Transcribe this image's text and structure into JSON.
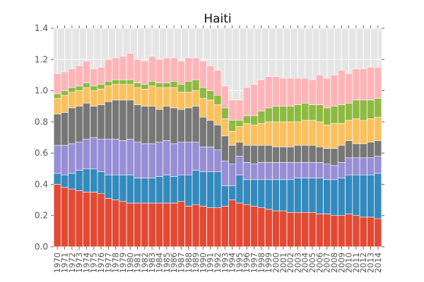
{
  "chart_data": {
    "type": "bar",
    "stacked": true,
    "title": "Haiti",
    "xlabel": "",
    "ylabel": "",
    "ylim": [
      0,
      1.4
    ],
    "yticks": [
      "0.0",
      "0.2",
      "0.4",
      "0.6",
      "0.8",
      "1.0",
      "1.2",
      "1.4"
    ],
    "grid": true,
    "legend": "none",
    "categories": [
      "1970",
      "1971",
      "1972",
      "1973",
      "1974",
      "1975",
      "1976",
      "1977",
      "1978",
      "1979",
      "1980",
      "1981",
      "1982",
      "1983",
      "1984",
      "1985",
      "1986",
      "1987",
      "1988",
      "1989",
      "1990",
      "1991",
      "1992",
      "1993",
      "1994",
      "1995",
      "1996",
      "1997",
      "1998",
      "1999",
      "2000",
      "2001",
      "2002",
      "2003",
      "2004",
      "2005",
      "2006",
      "2007",
      "2008",
      "2009",
      "2010",
      "2011",
      "2012",
      "2013",
      "2014"
    ],
    "colors": [
      "#e24a33",
      "#348abd",
      "#988ed5",
      "#777777",
      "#fbc15e",
      "#8eba42",
      "#ffb5b8"
    ],
    "series": [
      {
        "values": [
          0.4,
          0.38,
          0.37,
          0.36,
          0.35,
          0.35,
          0.34,
          0.31,
          0.3,
          0.29,
          0.28,
          0.28,
          0.28,
          0.28,
          0.28,
          0.28,
          0.28,
          0.29,
          0.26,
          0.27,
          0.26,
          0.25,
          0.25,
          0.26,
          0.3,
          0.28,
          0.27,
          0.26,
          0.25,
          0.24,
          0.23,
          0.23,
          0.22,
          0.22,
          0.22,
          0.22,
          0.21,
          0.21,
          0.2,
          0.2,
          0.21,
          0.2,
          0.19,
          0.19,
          0.18
        ]
      },
      {
        "values": [
          0.07,
          0.08,
          0.1,
          0.13,
          0.15,
          0.15,
          0.14,
          0.15,
          0.16,
          0.17,
          0.18,
          0.16,
          0.16,
          0.16,
          0.17,
          0.18,
          0.17,
          0.17,
          0.2,
          0.22,
          0.22,
          0.23,
          0.23,
          0.13,
          0.09,
          0.18,
          0.16,
          0.17,
          0.18,
          0.19,
          0.2,
          0.2,
          0.21,
          0.22,
          0.22,
          0.22,
          0.23,
          0.22,
          0.23,
          0.24,
          0.25,
          0.26,
          0.27,
          0.27,
          0.29
        ]
      },
      {
        "values": [
          0.18,
          0.19,
          0.19,
          0.18,
          0.19,
          0.2,
          0.21,
          0.23,
          0.23,
          0.22,
          0.23,
          0.23,
          0.22,
          0.22,
          0.22,
          0.22,
          0.21,
          0.21,
          0.21,
          0.18,
          0.16,
          0.16,
          0.14,
          0.16,
          0.14,
          0.12,
          0.11,
          0.1,
          0.11,
          0.11,
          0.11,
          0.11,
          0.11,
          0.1,
          0.1,
          0.1,
          0.1,
          0.1,
          0.09,
          0.1,
          0.11,
          0.11,
          0.11,
          0.11,
          0.11
        ]
      },
      {
        "values": [
          0.2,
          0.21,
          0.23,
          0.23,
          0.23,
          0.2,
          0.22,
          0.24,
          0.25,
          0.26,
          0.25,
          0.24,
          0.24,
          0.24,
          0.21,
          0.22,
          0.23,
          0.21,
          0.22,
          0.23,
          0.19,
          0.17,
          0.16,
          0.16,
          0.12,
          0.09,
          0.11,
          0.12,
          0.11,
          0.11,
          0.1,
          0.1,
          0.1,
          0.11,
          0.11,
          0.11,
          0.1,
          0.1,
          0.11,
          0.11,
          0.11,
          0.09,
          0.09,
          0.1,
          0.1
        ]
      },
      {
        "values": [
          0.1,
          0.11,
          0.1,
          0.1,
          0.1,
          0.1,
          0.1,
          0.1,
          0.1,
          0.1,
          0.1,
          0.11,
          0.11,
          0.13,
          0.14,
          0.12,
          0.13,
          0.11,
          0.1,
          0.1,
          0.12,
          0.13,
          0.13,
          0.11,
          0.09,
          0.1,
          0.14,
          0.13,
          0.14,
          0.15,
          0.16,
          0.16,
          0.16,
          0.15,
          0.16,
          0.16,
          0.16,
          0.15,
          0.16,
          0.14,
          0.13,
          0.16,
          0.15,
          0.15,
          0.15
        ]
      },
      {
        "values": [
          0.03,
          0.03,
          0.03,
          0.03,
          0.03,
          0.03,
          0.03,
          0.03,
          0.03,
          0.03,
          0.03,
          0.03,
          0.03,
          0.03,
          0.03,
          0.03,
          0.04,
          0.05,
          0.07,
          0.07,
          0.07,
          0.06,
          0.06,
          0.07,
          0.07,
          0.04,
          0.05,
          0.06,
          0.08,
          0.09,
          0.1,
          0.1,
          0.1,
          0.11,
          0.11,
          0.1,
          0.11,
          0.11,
          0.11,
          0.12,
          0.11,
          0.12,
          0.13,
          0.12,
          0.12
        ]
      },
      {
        "values": [
          0.13,
          0.12,
          0.12,
          0.13,
          0.14,
          0.11,
          0.11,
          0.14,
          0.14,
          0.15,
          0.17,
          0.15,
          0.15,
          0.16,
          0.15,
          0.16,
          0.15,
          0.15,
          0.15,
          0.14,
          0.17,
          0.16,
          0.16,
          0.14,
          0.13,
          0.13,
          0.18,
          0.2,
          0.2,
          0.2,
          0.19,
          0.18,
          0.18,
          0.17,
          0.16,
          0.16,
          0.19,
          0.19,
          0.2,
          0.22,
          0.19,
          0.2,
          0.2,
          0.21,
          0.2
        ]
      }
    ]
  }
}
